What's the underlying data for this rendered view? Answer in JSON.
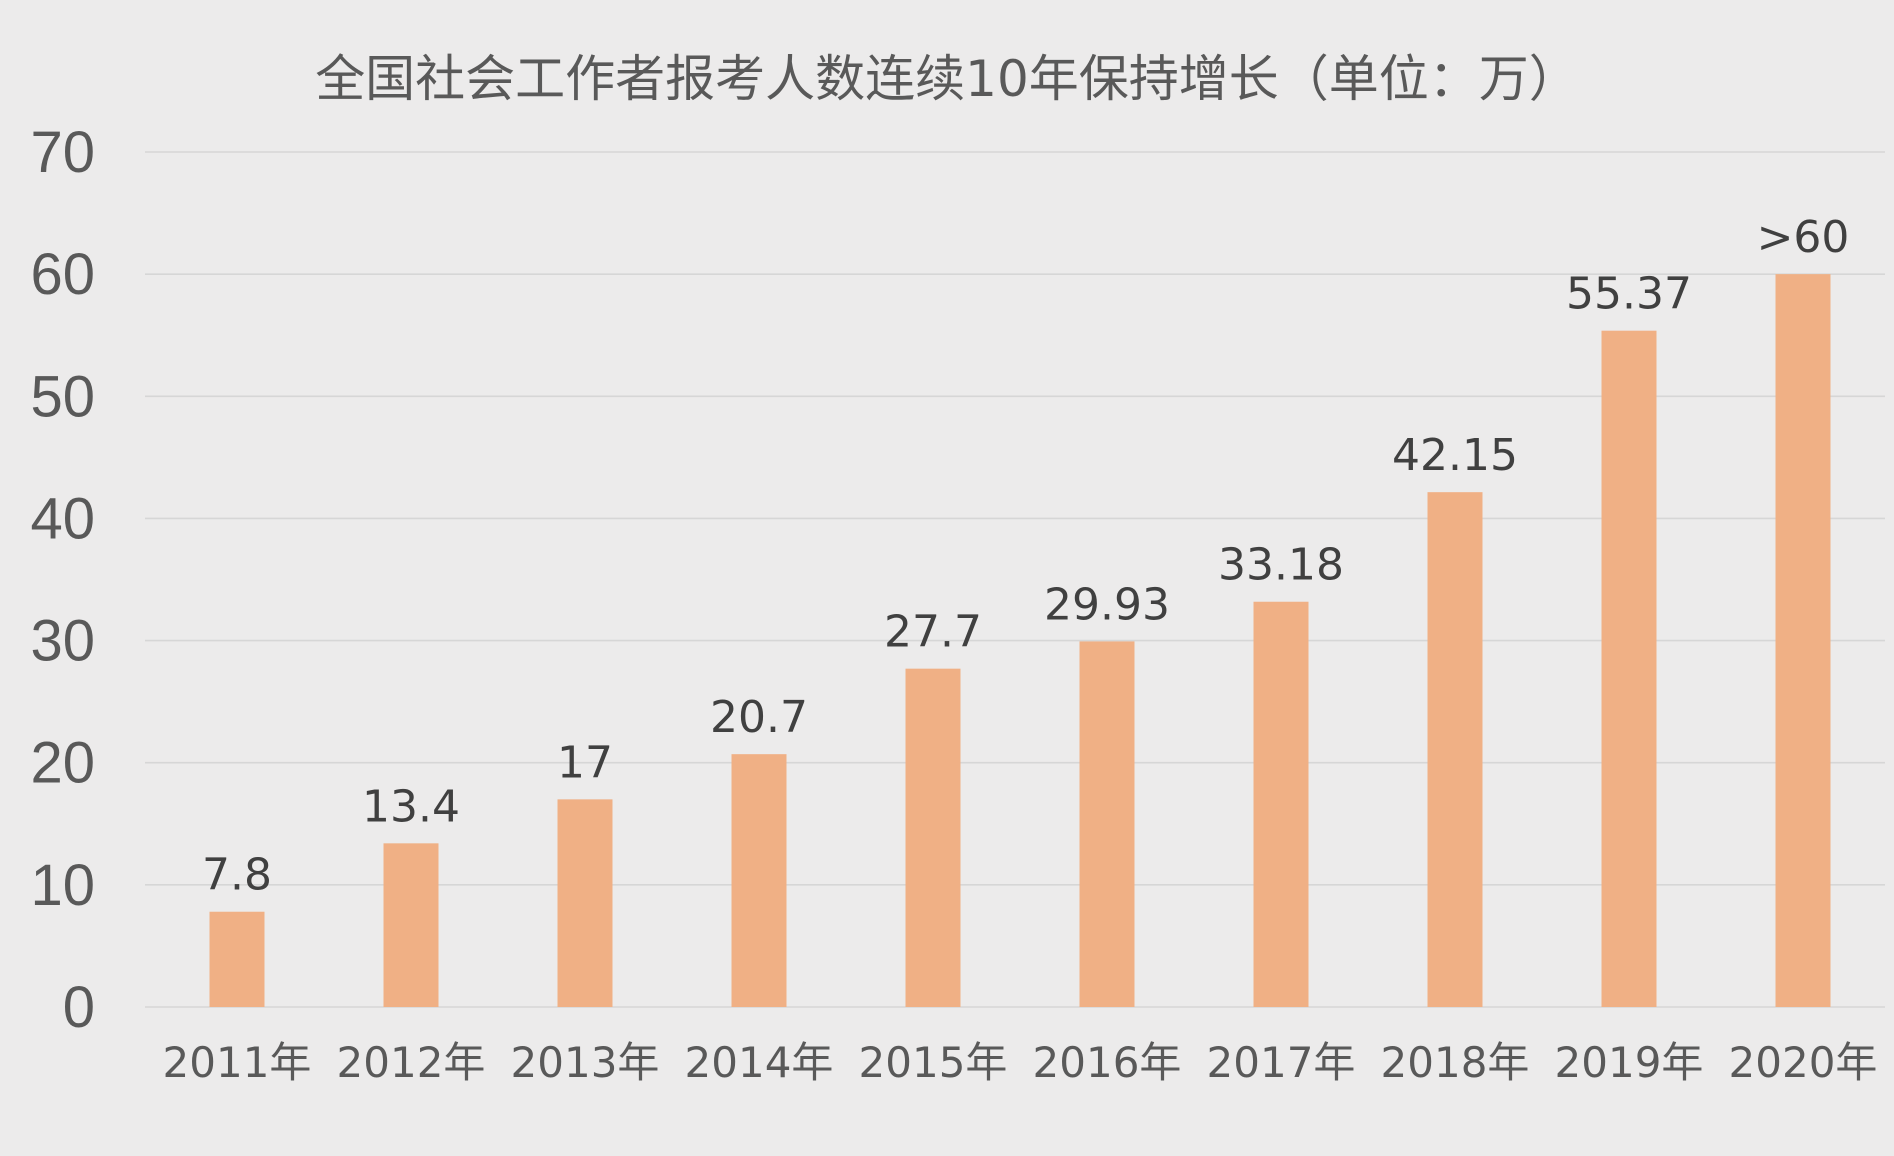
{
  "chart_data": {
    "type": "bar",
    "title": "全国社会工作者报考人数连续10年保持增长（单位：万）",
    "categories": [
      "2011年",
      "2012年",
      "2013年",
      "2014年",
      "2015年",
      "2016年",
      "2017年",
      "2018年",
      "2019年",
      "2020年"
    ],
    "values": [
      7.8,
      13.4,
      17,
      20.7,
      27.7,
      29.93,
      33.18,
      42.15,
      55.37,
      60
    ],
    "data_labels": [
      "7.8",
      "13.4",
      "17",
      "20.7",
      "27.7",
      "29.93",
      "33.18",
      "42.15",
      "55.37",
      ">60"
    ],
    "yticks": [
      "0",
      "10",
      "20",
      "30",
      "40",
      "50",
      "60",
      "70"
    ],
    "ylim": [
      0,
      70
    ],
    "grid": true,
    "legend": "none",
    "bar_color": "#f0b085"
  }
}
